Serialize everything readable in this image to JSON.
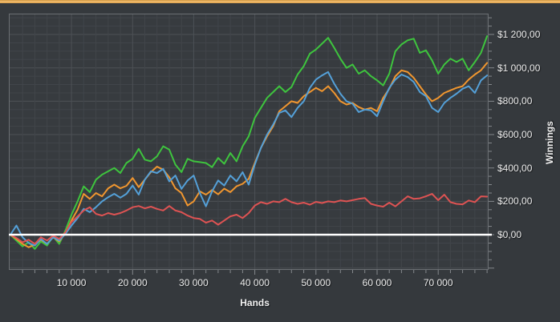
{
  "colors": {
    "background": "#35393d",
    "plot_background": "#373b3f",
    "grid_minor": "#41454a",
    "grid_major": "#4d5156",
    "plot_border": "#6b6f73",
    "tick": "#84888c",
    "label_text": "#ececec",
    "top_accent_bar": "#e3a851",
    "zero_line": "#ffffff"
  },
  "chart_data": {
    "type": "line",
    "title": "",
    "xlabel": "Hands",
    "ylabel": "Winnings",
    "x_ticks": [
      "10 000",
      "20 000",
      "30 000",
      "40 000",
      "50 000",
      "60 000",
      "70 000"
    ],
    "x_tick_values": [
      10000,
      20000,
      30000,
      40000,
      50000,
      60000,
      70000
    ],
    "y_ticks": [
      "$1 200,00",
      "$1 000,00",
      "$800,00",
      "$600,00",
      "$400,00",
      "$200,00",
      "$0,00"
    ],
    "y_tick_values": [
      1200,
      1000,
      800,
      600,
      400,
      200,
      0
    ],
    "xlim": [
      -250,
      78250
    ],
    "ylim": [
      -211,
      1325
    ],
    "x_minor_step": 2000,
    "y_minor_step": 50,
    "grid": true,
    "legend": "none",
    "zero_line_value": 0,
    "x_step": 1000,
    "x_start": 0,
    "series": [
      {
        "name": "green",
        "color": "#3ec43e",
        "values": [
          0,
          -35,
          -70,
          -45,
          -85,
          -40,
          -65,
          -10,
          -55,
          25,
          120,
          200,
          290,
          255,
          330,
          360,
          380,
          400,
          370,
          430,
          455,
          515,
          450,
          440,
          470,
          530,
          510,
          420,
          375,
          455,
          440,
          435,
          430,
          405,
          460,
          425,
          490,
          440,
          530,
          590,
          700,
          760,
          820,
          855,
          890,
          855,
          885,
          960,
          1010,
          1085,
          1110,
          1145,
          1180,
          1120,
          1055,
          1000,
          1020,
          965,
          985,
          950,
          925,
          895,
          965,
          1100,
          1140,
          1165,
          1175,
          1090,
          1105,
          1045,
          965,
          1020,
          1055,
          1035,
          1055,
          985,
          1035,
          1090,
          1190
        ]
      },
      {
        "name": "orange",
        "color": "#f0962f",
        "values": [
          0,
          -25,
          -55,
          -75,
          -60,
          -30,
          -55,
          -15,
          -40,
          10,
          85,
          150,
          245,
          215,
          250,
          230,
          278,
          300,
          278,
          293,
          340,
          285,
          330,
          375,
          408,
          390,
          345,
          278,
          250,
          175,
          200,
          260,
          240,
          268,
          242,
          276,
          255,
          290,
          305,
          335,
          430,
          520,
          590,
          650,
          740,
          770,
          800,
          790,
          830,
          855,
          880,
          860,
          890,
          850,
          800,
          780,
          790,
          765,
          750,
          760,
          740,
          820,
          875,
          950,
          985,
          975,
          940,
          890,
          840,
          800,
          820,
          850,
          865,
          880,
          890,
          930,
          960,
          985,
          1030
        ]
      },
      {
        "name": "blue",
        "color": "#54a0d8",
        "values": [
          0,
          55,
          -15,
          -50,
          -65,
          -25,
          -55,
          -15,
          -35,
          5,
          55,
          100,
          155,
          135,
          165,
          200,
          225,
          245,
          222,
          245,
          295,
          240,
          330,
          380,
          370,
          395,
          320,
          355,
          275,
          325,
          355,
          250,
          170,
          260,
          325,
          295,
          355,
          320,
          375,
          300,
          420,
          520,
          600,
          660,
          730,
          745,
          705,
          760,
          800,
          880,
          930,
          955,
          975,
          905,
          845,
          800,
          785,
          735,
          750,
          745,
          710,
          800,
          880,
          930,
          960,
          945,
          915,
          855,
          830,
          760,
          735,
          790,
          820,
          845,
          875,
          890,
          850,
          925,
          955
        ]
      },
      {
        "name": "red",
        "color": "#de5353",
        "values": [
          0,
          -20,
          -45,
          -30,
          -55,
          -15,
          -35,
          -5,
          -25,
          15,
          75,
          110,
          145,
          165,
          125,
          115,
          130,
          120,
          130,
          145,
          165,
          172,
          158,
          168,
          155,
          145,
          172,
          145,
          135,
          115,
          100,
          95,
          72,
          85,
          60,
          85,
          110,
          120,
          100,
          130,
          175,
          195,
          185,
          200,
          195,
          215,
          195,
          185,
          192,
          180,
          197,
          190,
          200,
          195,
          205,
          200,
          207,
          215,
          220,
          185,
          175,
          168,
          192,
          170,
          200,
          230,
          215,
          218,
          230,
          245,
          207,
          240,
          195,
          185,
          182,
          205,
          195,
          230,
          228
        ]
      }
    ]
  }
}
